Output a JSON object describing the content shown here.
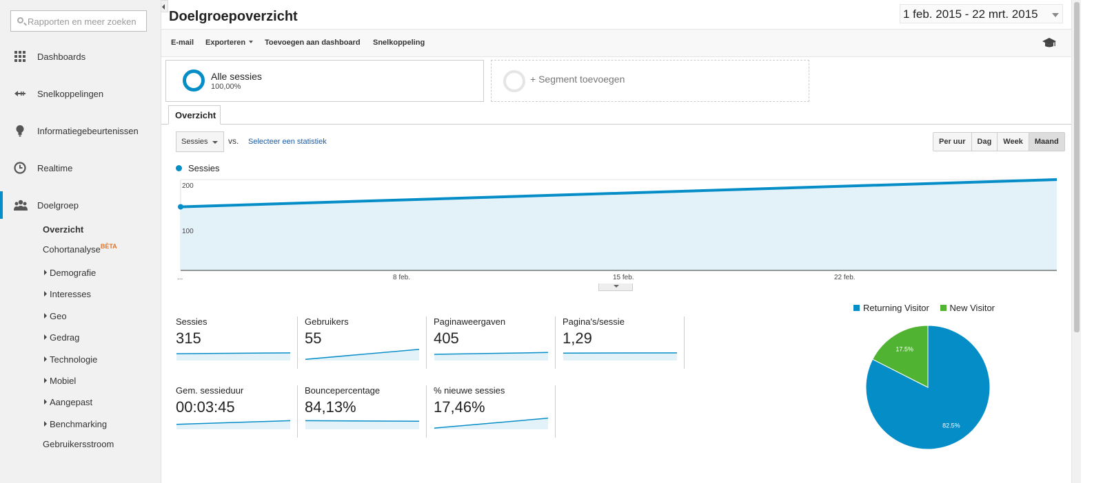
{
  "search": {
    "placeholder": "Rapporten en meer zoeken"
  },
  "sidebar": {
    "items": [
      {
        "label": "Dashboards",
        "icon": "grid-icon"
      },
      {
        "label": "Snelkoppelingen",
        "icon": "shortcut-arrow-icon"
      },
      {
        "label": "Informatiegebeurtenissen",
        "icon": "lightbulb-icon"
      },
      {
        "label": "Realtime",
        "icon": "clock-icon"
      },
      {
        "label": "Doelgroep",
        "icon": "people-icon"
      }
    ],
    "audience_sub": {
      "overview": "Overzicht",
      "cohort": "Cohortanalyse",
      "cohort_badge": "BÈTA",
      "expandables": [
        "Demografie",
        "Interesses",
        "Geo",
        "Gedrag",
        "Technologie",
        "Mobiel",
        "Aangepast",
        "Benchmarking"
      ],
      "user_flow": "Gebruikersstroom"
    }
  },
  "header": {
    "title": "Doelgroepoverzicht",
    "date_range": "1 feb. 2015 - 22 mrt. 2015"
  },
  "toolbar": {
    "email": "E-mail",
    "export": "Exporteren",
    "add_dashboard": "Toevoegen aan dashboard",
    "shortcut": "Snelkoppeling"
  },
  "segments": {
    "active": {
      "name": "Alle sessies",
      "pct": "100,00%"
    },
    "add": "+ Segment toevoegen"
  },
  "tabs": {
    "overview": "Overzicht"
  },
  "controls": {
    "metric": "Sessies",
    "vs": "vs.",
    "select_stat": "Selecteer een statistiek",
    "periods": [
      "Per uur",
      "Dag",
      "Week",
      "Maand"
    ],
    "active_period": "Maand"
  },
  "colors": {
    "primary": "#058dc7",
    "secondary": "#50b432",
    "area_fill": "#e3f1f9"
  },
  "chart_data": {
    "type": "area",
    "series": [
      {
        "name": "Sessies",
        "points": [
          [
            0,
            140
          ],
          [
            1,
            200
          ]
        ]
      }
    ],
    "ylim": [
      0,
      210
    ],
    "y_ticks": [
      "200",
      "100"
    ],
    "x_ticks": [
      "...",
      "8 feb.",
      "15 feb.",
      "22 feb."
    ]
  },
  "scorecards": [
    {
      "label": "Sessies",
      "value": "315",
      "spark": [
        0.55,
        0.62
      ]
    },
    {
      "label": "Gebruikers",
      "value": "55",
      "spark": [
        0.1,
        0.9
      ]
    },
    {
      "label": "Paginaweergaven",
      "value": "405",
      "spark": [
        0.5,
        0.65
      ]
    },
    {
      "label": "Pagina's/sessie",
      "value": "1,29",
      "spark": [
        0.6,
        0.62
      ]
    },
    {
      "label": "Gem. sessieduur",
      "value": "00:03:45",
      "spark": [
        0.4,
        0.7
      ]
    },
    {
      "label": "Bouncepercentage",
      "value": "84,13%",
      "spark": [
        0.7,
        0.65
      ]
    },
    {
      "label": "% nieuwe sessies",
      "value": "17,46%",
      "spark": [
        0.1,
        0.9
      ]
    }
  ],
  "pie": {
    "type": "pie",
    "slices": [
      {
        "label": "Returning Visitor",
        "value": 82.5,
        "text": "82.5%",
        "color": "#058dc7"
      },
      {
        "label": "New Visitor",
        "value": 17.5,
        "text": "17.5%",
        "color": "#50b432"
      }
    ]
  }
}
